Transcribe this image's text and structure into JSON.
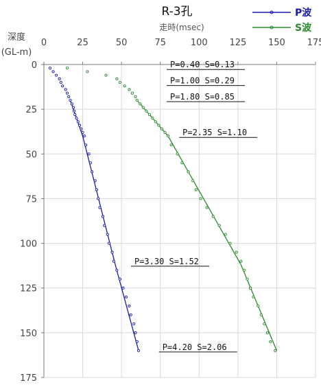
{
  "chart_data": {
    "type": "scatter",
    "title": "R-3孔",
    "xlabel": "走時(msec)",
    "ylabel": "深度",
    "ylabel_unit": "(GL-m)",
    "xlim": [
      0,
      175
    ],
    "ylim": [
      0,
      175
    ],
    "y_inverted": true,
    "x_axis_position": "top",
    "xticks": [
      0,
      25,
      50,
      75,
      100,
      125,
      150,
      175
    ],
    "yticks": [
      0,
      25,
      50,
      75,
      100,
      125,
      150,
      175
    ],
    "grid": false,
    "legend_position": "top-right",
    "series": [
      {
        "name": "P波",
        "color": "#1a1aaa",
        "points": [
          [
            4,
            2
          ],
          [
            6,
            4
          ],
          [
            8,
            6
          ],
          [
            10,
            8
          ],
          [
            11,
            10
          ],
          [
            12,
            12
          ],
          [
            14,
            14
          ],
          [
            15,
            16
          ],
          [
            16,
            18
          ],
          [
            17,
            20
          ],
          [
            18,
            22
          ],
          [
            19,
            24
          ],
          [
            19.5,
            26
          ],
          [
            20,
            28
          ],
          [
            21,
            30
          ],
          [
            22,
            32
          ],
          [
            23,
            34
          ],
          [
            24,
            36
          ],
          [
            25,
            38
          ],
          [
            26,
            40
          ],
          [
            27,
            45
          ],
          [
            29,
            50
          ],
          [
            30,
            55
          ],
          [
            31,
            60
          ],
          [
            33,
            65
          ],
          [
            34,
            70
          ],
          [
            35,
            75
          ],
          [
            36,
            80
          ],
          [
            38,
            85
          ],
          [
            39,
            90
          ],
          [
            41,
            95
          ],
          [
            42,
            100
          ],
          [
            44,
            105
          ],
          [
            45,
            110
          ],
          [
            47,
            115
          ],
          [
            49,
            120
          ],
          [
            51,
            125
          ],
          [
            53,
            130
          ],
          [
            55,
            135
          ],
          [
            56,
            140
          ],
          [
            58,
            145
          ],
          [
            59,
            150
          ],
          [
            60,
            155
          ],
          [
            61,
            160
          ]
        ],
        "segments": [
          {
            "depth": [
              20,
              40
            ],
            "time": [
              17,
              25
            ]
          },
          {
            "depth": [
              40,
              112
            ],
            "time": [
              25,
              46
            ]
          },
          {
            "depth": [
              112,
              160
            ],
            "time": [
              46,
              61
            ]
          }
        ]
      },
      {
        "name": "S波",
        "color": "#2a8a2a",
        "points": [
          [
            15,
            2
          ],
          [
            28,
            4
          ],
          [
            40,
            6
          ],
          [
            47,
            8
          ],
          [
            49,
            10
          ],
          [
            52,
            12
          ],
          [
            55,
            14
          ],
          [
            57,
            16
          ],
          [
            59,
            18
          ],
          [
            60,
            20
          ],
          [
            62,
            22
          ],
          [
            64,
            24
          ],
          [
            66,
            26
          ],
          [
            68,
            28
          ],
          [
            70,
            30
          ],
          [
            72,
            32
          ],
          [
            74,
            34
          ],
          [
            76,
            36
          ],
          [
            78,
            38
          ],
          [
            80,
            40
          ],
          [
            82,
            45
          ],
          [
            86,
            50
          ],
          [
            89,
            55
          ],
          [
            93,
            60
          ],
          [
            96,
            65
          ],
          [
            98,
            70
          ],
          [
            101,
            75
          ],
          [
            105,
            80
          ],
          [
            109,
            85
          ],
          [
            113,
            90
          ],
          [
            117,
            95
          ],
          [
            120,
            100
          ],
          [
            124,
            105
          ],
          [
            127,
            110
          ],
          [
            129,
            115
          ],
          [
            131,
            120
          ],
          [
            133,
            125
          ],
          [
            135,
            130
          ],
          [
            138,
            135
          ],
          [
            140,
            140
          ],
          [
            142,
            145
          ],
          [
            144,
            150
          ],
          [
            146,
            155
          ],
          [
            149,
            160
          ]
        ],
        "segments": [
          {
            "depth": [
              20,
              40
            ],
            "time": [
              60,
              80
            ]
          },
          {
            "depth": [
              40,
              112
            ],
            "time": [
              80,
              127
            ]
          },
          {
            "depth": [
              112,
              160
            ],
            "time": [
              127,
              150
            ]
          }
        ]
      }
    ],
    "annotations": [
      {
        "text": "P=0.40 S=0.13",
        "depth": 2,
        "time": 80
      },
      {
        "text": "P=1.00 S=0.29",
        "depth": 11,
        "time": 80
      },
      {
        "text": "P=1.80 S=0.85",
        "depth": 20,
        "time": 80
      },
      {
        "text": "P=2.35 S=1.10",
        "depth": 40,
        "time": 88
      },
      {
        "text": "P=3.30 S=1.52",
        "depth": 112,
        "time": 57
      },
      {
        "text": "P=4.20 S=2.06",
        "depth": 160,
        "time": 75
      }
    ]
  }
}
